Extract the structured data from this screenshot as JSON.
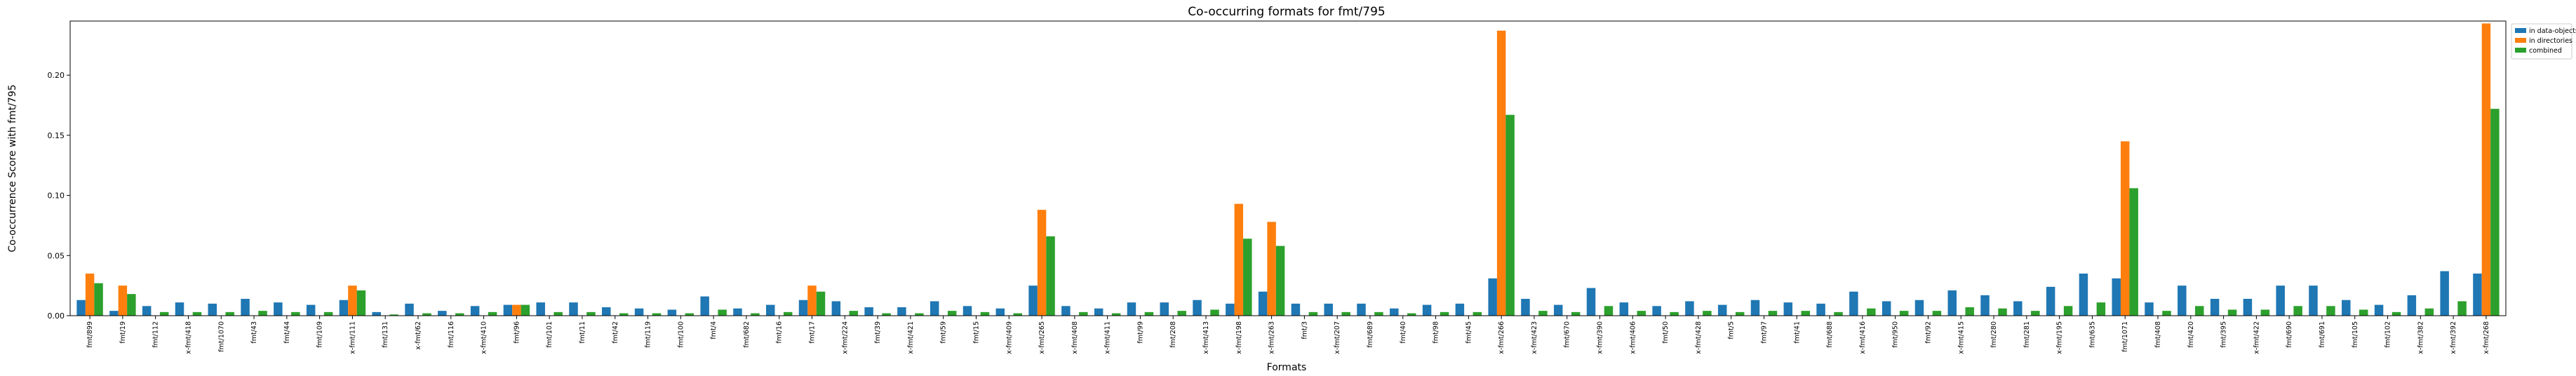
{
  "chart_data": {
    "type": "bar",
    "title": "Co-occurring formats for fmt/795",
    "xlabel": "Formats",
    "ylabel": "Co-occurrence Score with fmt/795",
    "ylim": [
      0,
      0.245
    ],
    "yticks": [
      0.0,
      0.05,
      0.1,
      0.15,
      0.2
    ],
    "ytick_labels": [
      "0.00",
      "0.05",
      "0.10",
      "0.15",
      "0.20"
    ],
    "grid": false,
    "legend_position": "upper-right-outside",
    "categories": [
      "fmt/899",
      "fmt/19",
      "fmt/112",
      "x-fmt/418",
      "fmt/1070",
      "fmt/43",
      "fmt/44",
      "fmt/109",
      "x-fmt/111",
      "fmt/131",
      "x-fmt/62",
      "fmt/116",
      "x-fmt/410",
      "fmt/96",
      "fmt/101",
      "fmt/11",
      "fmt/42",
      "fmt/119",
      "fmt/100",
      "fmt/4",
      "fmt/682",
      "fmt/16",
      "fmt/17",
      "x-fmt/224",
      "fmt/39",
      "x-fmt/421",
      "fmt/59",
      "fmt/15",
      "x-fmt/409",
      "x-fmt/265",
      "x-fmt/408",
      "x-fmt/411",
      "fmt/99",
      "fmt/208",
      "x-fmt/413",
      "x-fmt/198",
      "x-fmt/263",
      "fmt/3",
      "x-fmt/207",
      "fmt/689",
      "fmt/40",
      "fmt/98",
      "fmt/45",
      "x-fmt/266",
      "x-fmt/423",
      "fmt/670",
      "x-fmt/390",
      "x-fmt/406",
      "fmt/50",
      "x-fmt/428",
      "fmt/5",
      "fmt/97",
      "fmt/41",
      "fmt/688",
      "x-fmt/416",
      "fmt/950",
      "fmt/92",
      "x-fmt/415",
      "fmt/280",
      "fmt/281",
      "x-fmt/195",
      "fmt/635",
      "fmt/1071",
      "fmt/408",
      "fmt/420",
      "fmt/395",
      "x-fmt/422",
      "fmt/690",
      "fmt/691",
      "fmt/105",
      "fmt/102",
      "x-fmt/382",
      "x-fmt/392",
      "x-fmt/268"
    ],
    "series": [
      {
        "name": "in data-objects",
        "color": "#1f77b4",
        "values": [
          0.013,
          0.004,
          0.008,
          0.011,
          0.01,
          0.014,
          0.011,
          0.009,
          0.013,
          0.003,
          0.01,
          0.004,
          0.008,
          0.009,
          0.011,
          0.011,
          0.007,
          0.006,
          0.005,
          0.016,
          0.006,
          0.009,
          0.013,
          0.012,
          0.007,
          0.007,
          0.012,
          0.008,
          0.006,
          0.025,
          0.008,
          0.006,
          0.011,
          0.011,
          0.013,
          0.01,
          0.02,
          0.01,
          0.01,
          0.01,
          0.006,
          0.009,
          0.01,
          0.031,
          0.014,
          0.009,
          0.023,
          0.011,
          0.008,
          0.012,
          0.009,
          0.013,
          0.011,
          0.01,
          0.02,
          0.012,
          0.013,
          0.021,
          0.017,
          0.012,
          0.024,
          0.035,
          0.031,
          0.011,
          0.025,
          0.014,
          0.014,
          0.025,
          0.025,
          0.013,
          0.009,
          0.017,
          0.037,
          0.035
        ]
      },
      {
        "name": "in directories",
        "color": "#ff7f0e",
        "values": [
          0.035,
          0.025,
          0.0,
          0.0,
          0.0,
          0.0,
          0.0,
          0.0,
          0.025,
          0.0,
          0.0,
          0.0,
          0.0,
          0.009,
          0.0,
          0.0,
          0.0,
          0.0,
          0.0,
          0.0,
          0.0,
          0.0,
          0.025,
          0.0,
          0.0,
          0.0,
          0.0,
          0.0,
          0.0,
          0.088,
          0.0,
          0.0,
          0.0,
          0.0,
          0.0,
          0.093,
          0.078,
          0.0,
          0.0,
          0.0,
          0.0,
          0.0,
          0.0,
          0.237,
          0.0,
          0.0,
          0.0,
          0.0,
          0.0,
          0.0,
          0.0,
          0.0,
          0.0,
          0.0,
          0.0,
          0.0,
          0.0,
          0.0,
          0.0,
          0.0,
          0.0,
          0.0,
          0.145,
          0.0,
          0.0,
          0.0,
          0.0,
          0.0,
          0.0,
          0.0,
          0.0,
          0.0,
          0.0,
          0.243
        ]
      },
      {
        "name": "combined",
        "color": "#2ca02c",
        "values": [
          0.027,
          0.018,
          0.003,
          0.003,
          0.003,
          0.004,
          0.003,
          0.003,
          0.021,
          0.001,
          0.002,
          0.002,
          0.003,
          0.009,
          0.003,
          0.003,
          0.002,
          0.002,
          0.002,
          0.005,
          0.002,
          0.003,
          0.02,
          0.004,
          0.002,
          0.002,
          0.004,
          0.003,
          0.002,
          0.066,
          0.003,
          0.002,
          0.003,
          0.004,
          0.005,
          0.064,
          0.058,
          0.003,
          0.003,
          0.003,
          0.002,
          0.003,
          0.003,
          0.167,
          0.004,
          0.003,
          0.008,
          0.004,
          0.003,
          0.004,
          0.003,
          0.004,
          0.004,
          0.003,
          0.006,
          0.004,
          0.004,
          0.007,
          0.006,
          0.004,
          0.008,
          0.011,
          0.106,
          0.004,
          0.008,
          0.005,
          0.005,
          0.008,
          0.008,
          0.005,
          0.003,
          0.006,
          0.012,
          0.172
        ]
      }
    ]
  }
}
